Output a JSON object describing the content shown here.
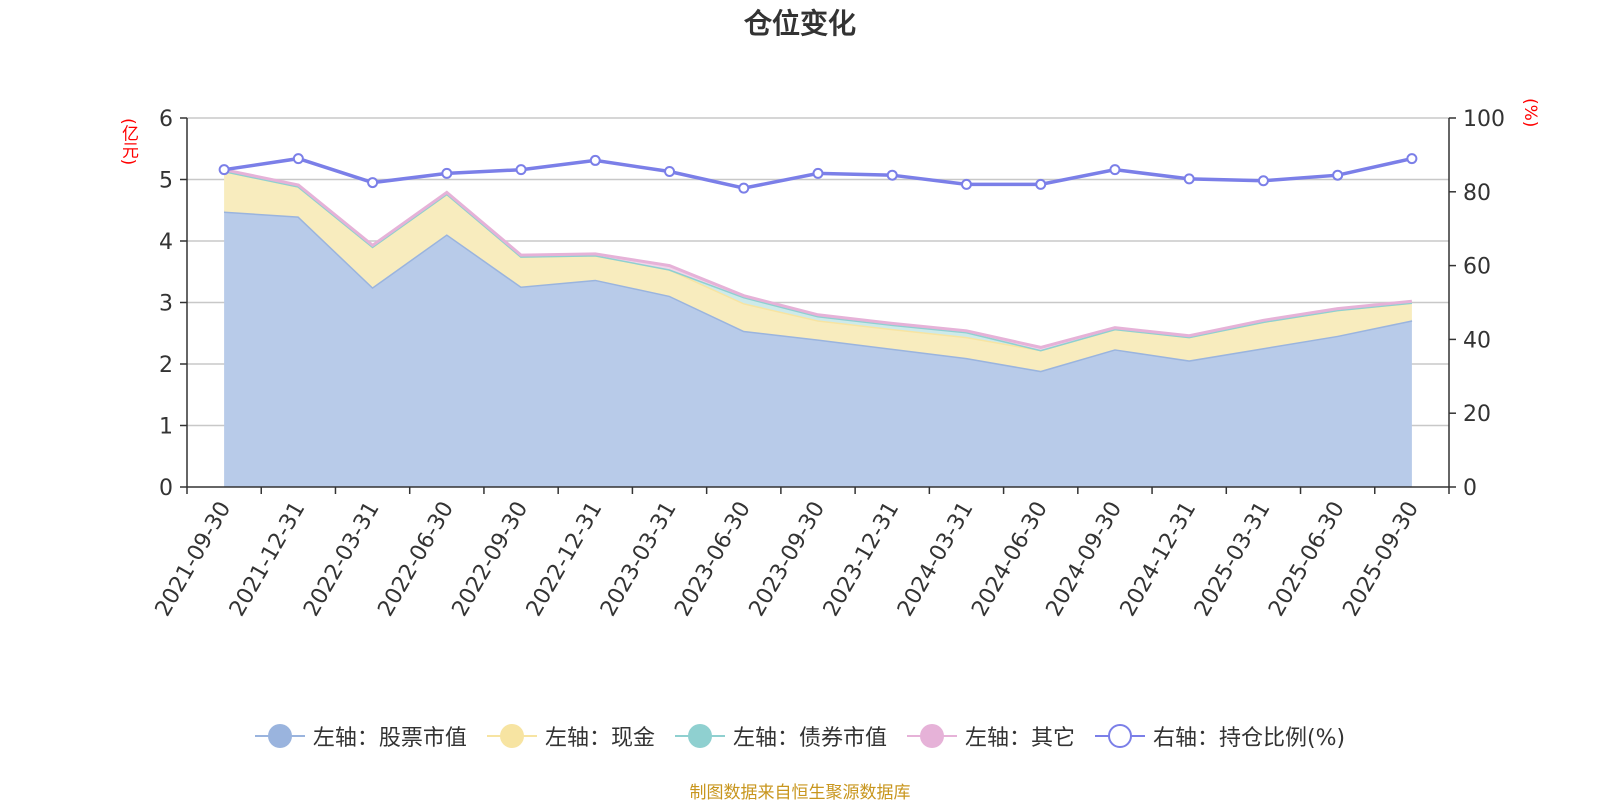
{
  "chart_data": {
    "type": "area",
    "title": "仓位变化",
    "source": "制图数据来自恒生聚源数据库",
    "left_axis": {
      "unit": "(亿元)",
      "ylim": [
        0,
        6
      ],
      "ticks": [
        "0",
        "1",
        "2",
        "3",
        "4",
        "5",
        "6"
      ]
    },
    "right_axis": {
      "unit": "(%)",
      "ylim": [
        0,
        100
      ],
      "ticks": [
        "0",
        "20",
        "40",
        "60",
        "80",
        "100"
      ]
    },
    "categories": [
      "2021-09-30",
      "2021-12-31",
      "2022-03-31",
      "2022-06-30",
      "2022-09-30",
      "2022-12-31",
      "2023-03-31",
      "2023-06-30",
      "2023-09-30",
      "2023-12-31",
      "2024-03-31",
      "2024-06-30",
      "2024-09-30",
      "2024-12-31",
      "2025-03-31",
      "2025-06-30",
      "2025-09-30"
    ],
    "series": [
      {
        "name": "左轴：股票市值",
        "axis": "left",
        "stacked": true,
        "color": "#9ab4de",
        "fill": "#b8cbe9",
        "values": [
          4.48,
          4.4,
          3.25,
          4.11,
          3.26,
          3.37,
          3.11,
          2.54,
          2.4,
          2.25,
          2.1,
          1.89,
          2.24,
          2.06,
          2.26,
          2.46,
          2.71
        ]
      },
      {
        "name": "左轴：现金",
        "axis": "left",
        "stacked": true,
        "color": "#f7e4a2",
        "fill": "#f8ecbe",
        "values": [
          0.66,
          0.49,
          0.66,
          0.66,
          0.49,
          0.4,
          0.43,
          0.45,
          0.31,
          0.32,
          0.34,
          0.34,
          0.33,
          0.38,
          0.43,
          0.42,
          0.29
        ]
      },
      {
        "name": "左轴：债券市值",
        "axis": "left",
        "stacked": true,
        "color": "#8fd0d0",
        "fill": "#cdeaea",
        "values": [
          0,
          0,
          0,
          0,
          0,
          0,
          0,
          0.1,
          0.07,
          0.07,
          0.08,
          0,
          0,
          0,
          0,
          0,
          0
        ]
      },
      {
        "name": "左轴：其它",
        "axis": "left",
        "stacked": true,
        "color": "#e6b2d8",
        "fill": "#f1d5ea",
        "values": [
          0.02,
          0.02,
          0.02,
          0.02,
          0.02,
          0.02,
          0.06,
          0.02,
          0.02,
          0.02,
          0.02,
          0.04,
          0.02,
          0.02,
          0.02,
          0.02,
          0.02
        ]
      },
      {
        "name": "右轴：持仓比例(%)",
        "axis": "right",
        "stacked": false,
        "color": "#7b7fe8",
        "values": [
          86.0,
          89.0,
          82.5,
          85.0,
          86.0,
          88.5,
          85.5,
          81.0,
          85.0,
          84.5,
          82.0,
          82.0,
          86.0,
          83.5,
          83.0,
          84.5,
          89.0
        ]
      }
    ]
  }
}
